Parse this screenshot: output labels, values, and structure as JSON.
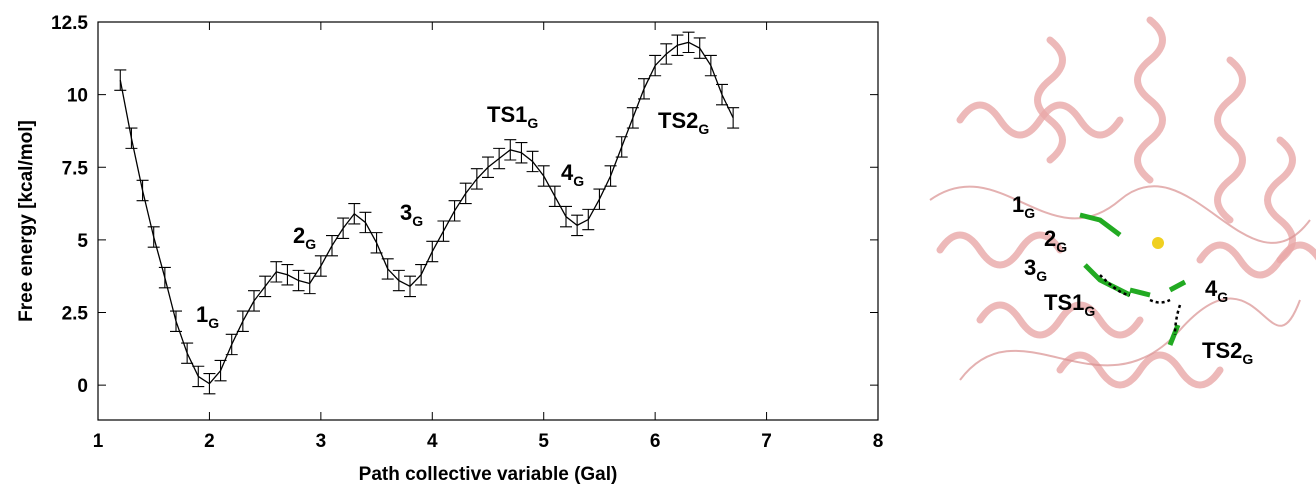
{
  "chart_data": {
    "type": "line",
    "x_label": "Path collective variable (Gal)",
    "y_label": "Free energy [kcal/mol]",
    "x": [
      1.2,
      1.3,
      1.4,
      1.5,
      1.6,
      1.7,
      1.8,
      1.9,
      2.0,
      2.1,
      2.2,
      2.3,
      2.4,
      2.5,
      2.6,
      2.7,
      2.8,
      2.9,
      3.0,
      3.1,
      3.2,
      3.3,
      3.4,
      3.5,
      3.6,
      3.7,
      3.8,
      3.9,
      4.0,
      4.1,
      4.2,
      4.3,
      4.4,
      4.5,
      4.6,
      4.7,
      4.8,
      4.9,
      5.0,
      5.1,
      5.2,
      5.3,
      5.4,
      5.5,
      5.6,
      5.7,
      5.8,
      5.9,
      6.0,
      6.1,
      6.2,
      6.3,
      6.4,
      6.5,
      6.6,
      6.7
    ],
    "series": [
      {
        "color": "#000000",
        "values": [
          10.5,
          8.5,
          6.7,
          5.1,
          3.7,
          2.2,
          1.1,
          0.3,
          0.05,
          0.5,
          1.4,
          2.2,
          2.9,
          3.4,
          3.9,
          3.8,
          3.6,
          3.5,
          4.1,
          4.8,
          5.4,
          5.9,
          5.6,
          4.9,
          4.0,
          3.6,
          3.4,
          3.8,
          4.6,
          5.3,
          6.0,
          6.6,
          7.1,
          7.5,
          7.8,
          8.1,
          8.0,
          7.7,
          7.2,
          6.5,
          5.8,
          5.5,
          5.7,
          6.4,
          7.2,
          8.2,
          9.2,
          10.2,
          11.0,
          11.4,
          11.7,
          11.8,
          11.6,
          11.0,
          10.0,
          9.2
        ],
        "errors": [
          0.35,
          0.35,
          0.35,
          0.35,
          0.35,
          0.35,
          0.35,
          0.35,
          0.35,
          0.35,
          0.35,
          0.35,
          0.35,
          0.35,
          0.35,
          0.35,
          0.35,
          0.35,
          0.35,
          0.35,
          0.35,
          0.35,
          0.35,
          0.35,
          0.35,
          0.35,
          0.35,
          0.35,
          0.35,
          0.35,
          0.35,
          0.35,
          0.35,
          0.35,
          0.35,
          0.35,
          0.35,
          0.35,
          0.35,
          0.35,
          0.35,
          0.35,
          0.35,
          0.35,
          0.35,
          0.35,
          0.35,
          0.35,
          0.35,
          0.35,
          0.35,
          0.35,
          0.35,
          0.35,
          0.35,
          0.35
        ]
      }
    ],
    "xlim": [
      1,
      8
    ],
    "xticks": [
      1,
      2,
      3,
      4,
      5,
      6,
      7,
      8
    ],
    "ylim": [
      -1.2,
      12.5
    ],
    "yticks": [
      0,
      2.5,
      5,
      7.5,
      10,
      12.5
    ],
    "annotations": [
      {
        "text": "1",
        "sub": "G"
      },
      {
        "text": "2",
        "sub": "G"
      },
      {
        "text": "3",
        "sub": "G"
      },
      {
        "text": "TS1",
        "sub": "G"
      },
      {
        "text": "4",
        "sub": "G"
      },
      {
        "text": "TS2",
        "sub": "G"
      }
    ]
  },
  "image_labels": [
    {
      "text": "1",
      "sub": "G"
    },
    {
      "text": "2",
      "sub": "G"
    },
    {
      "text": "3",
      "sub": "G"
    },
    {
      "text": "TS1",
      "sub": "G"
    },
    {
      "text": "4",
      "sub": "G"
    },
    {
      "text": "TS2",
      "sub": "G"
    }
  ]
}
